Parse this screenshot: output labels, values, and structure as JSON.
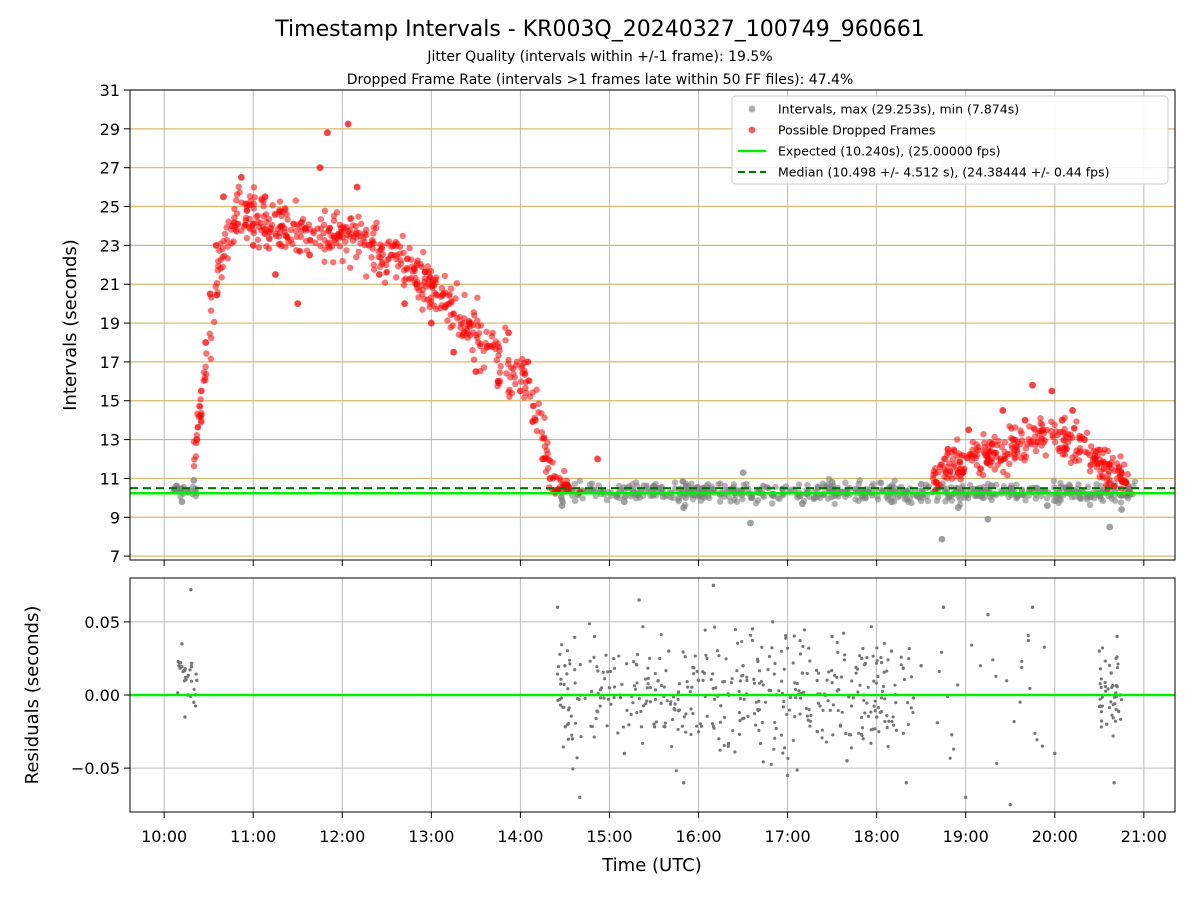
{
  "title": "Timestamp Intervals - KR003Q_20240327_100749_960661",
  "subtitle_1": "Jitter Quality (intervals within +/-1 frame): 19.5%",
  "subtitle_2": "Dropped Frame Rate (intervals >1 frames late within 50 FF files): 47.4%",
  "colors": {
    "intervals": "#808080",
    "dropped": "#ff0000",
    "expected": "#00ee00",
    "median": "#007700",
    "hgrid": "#d8b870",
    "vgrid": "#bbbbbb"
  },
  "chart_data": [
    {
      "type": "scatter",
      "name": "intervals",
      "xlabel": "",
      "ylabel": "Intervals (seconds)",
      "xlim": [
        "09:37",
        "21:21"
      ],
      "ylim": [
        6.8,
        31
      ],
      "yticks": [
        "7",
        "9",
        "11",
        "13",
        "15",
        "17",
        "19",
        "21",
        "23",
        "25",
        "27",
        "29",
        "31"
      ],
      "xticks": [
        "10:00",
        "11:00",
        "12:00",
        "13:00",
        "14:00",
        "15:00",
        "16:00",
        "17:00",
        "18:00",
        "19:00",
        "20:00",
        "21:00"
      ],
      "grid": true,
      "legend_position": "top-right",
      "legend": [
        "Intervals, max (29.253s), min (7.874s)",
        "Possible Dropped Frames",
        "Expected (10.240s), (25.00000 fps)",
        "Median (10.498 +/- 4.512 s), (24.38444 +/- 0.44 fps)"
      ],
      "expected_interval": 10.24,
      "median_interval": 10.498,
      "series": [
        {
          "name": "Intervals, max (29.253s), min (7.874s)",
          "points": [
            [
              "10:08",
              10.6
            ],
            [
              "10:12",
              9.8
            ],
            [
              "10:16",
              10.3
            ],
            [
              "10:20",
              10.9
            ],
            [
              "14:28",
              9.6
            ],
            [
              "14:50",
              10.4
            ],
            [
              "15:10",
              9.8
            ],
            [
              "15:30",
              10.6
            ],
            [
              "15:50",
              9.5
            ],
            [
              "16:10",
              10.4
            ],
            [
              "16:30",
              11.3
            ],
            [
              "16:35",
              8.7
            ],
            [
              "16:50",
              10.2
            ],
            [
              "17:10",
              9.7
            ],
            [
              "17:30",
              10.8
            ],
            [
              "17:50",
              10.1
            ],
            [
              "18:10",
              9.8
            ],
            [
              "18:30",
              10.7
            ],
            [
              "18:44",
              7.87
            ],
            [
              "18:55",
              9.5
            ],
            [
              "19:15",
              8.9
            ],
            [
              "19:35",
              10.1
            ],
            [
              "19:55",
              9.6
            ],
            [
              "20:15",
              10.3
            ],
            [
              "20:37",
              8.5
            ],
            [
              "20:45",
              9.4
            ],
            [
              "20:50",
              10.4
            ]
          ]
        },
        {
          "name": "Possible Dropped Frames",
          "points": [
            [
              "10:22",
              13.0
            ],
            [
              "10:25",
              15.5
            ],
            [
              "10:28",
              18.0
            ],
            [
              "10:31",
              20.5
            ],
            [
              "10:35",
              23.0
            ],
            [
              "10:40",
              25.5
            ],
            [
              "10:46",
              24.0
            ],
            [
              "10:52",
              26.5
            ],
            [
              "11:00",
              23.0
            ],
            [
              "11:08",
              25.5
            ],
            [
              "11:15",
              21.5
            ],
            [
              "11:22",
              23.5
            ],
            [
              "11:30",
              20.0
            ],
            [
              "11:38",
              22.5
            ],
            [
              "11:45",
              27.0
            ],
            [
              "11:50",
              28.8
            ],
            [
              "11:58",
              23.5
            ],
            [
              "12:04",
              29.25
            ],
            [
              "12:10",
              26.0
            ],
            [
              "12:18",
              23.0
            ],
            [
              "12:25",
              21.5
            ],
            [
              "12:33",
              22.5
            ],
            [
              "12:42",
              20.0
            ],
            [
              "12:50",
              21.0
            ],
            [
              "13:00",
              19.0
            ],
            [
              "13:08",
              20.5
            ],
            [
              "13:15",
              17.5
            ],
            [
              "13:22",
              18.5
            ],
            [
              "13:30",
              16.5
            ],
            [
              "13:38",
              17.8
            ],
            [
              "13:45",
              16.0
            ],
            [
              "13:52",
              18.5
            ],
            [
              "14:00",
              15.5
            ],
            [
              "14:05",
              17.0
            ],
            [
              "14:10",
              14.0
            ],
            [
              "14:15",
              12.0
            ],
            [
              "14:20",
              11.0
            ],
            [
              "14:25",
              10.4
            ],
            [
              "14:32",
              10.6
            ],
            [
              "14:40",
              10.3
            ],
            [
              "14:52",
              12.0
            ],
            [
              "18:40",
              10.8
            ],
            [
              "18:48",
              12.5
            ],
            [
              "18:55",
              11.3
            ],
            [
              "19:02",
              13.5
            ],
            [
              "19:10",
              11.5
            ],
            [
              "19:18",
              12.8
            ],
            [
              "19:25",
              14.5
            ],
            [
              "19:32",
              13.0
            ],
            [
              "19:40",
              14.0
            ],
            [
              "19:45",
              15.8
            ],
            [
              "19:52",
              13.5
            ],
            [
              "19:58",
              15.5
            ],
            [
              "20:05",
              14.0
            ],
            [
              "20:12",
              14.5
            ],
            [
              "20:20",
              13.0
            ],
            [
              "20:27",
              12.0
            ],
            [
              "20:33",
              11.5
            ],
            [
              "20:40",
              10.6
            ],
            [
              "20:48",
              10.8
            ]
          ]
        }
      ]
    },
    {
      "type": "scatter",
      "name": "residuals",
      "xlabel": "Time (UTC)",
      "ylabel": "Residuals (seconds)",
      "ylim": [
        -0.08,
        0.08
      ],
      "yticks": [
        "−0.05",
        "0.00",
        "0.05"
      ],
      "grid": true,
      "zero_line": 0.0,
      "series": [
        {
          "name": "residuals",
          "points": [
            [
              "10:10",
              0.02
            ],
            [
              "10:12",
              0.035
            ],
            [
              "10:14",
              -0.015
            ],
            [
              "10:16",
              0.0
            ],
            [
              "10:18",
              0.072
            ],
            [
              "10:20",
              -0.005
            ],
            [
              "10:22",
              0.01
            ],
            [
              "14:25",
              0.06
            ],
            [
              "14:30",
              0.02
            ],
            [
              "14:35",
              -0.03
            ],
            [
              "14:40",
              -0.07
            ],
            [
              "14:50",
              0.04
            ],
            [
              "15:00",
              0.005
            ],
            [
              "15:10",
              -0.04
            ],
            [
              "15:20",
              0.065
            ],
            [
              "15:30",
              -0.02
            ],
            [
              "15:40",
              0.03
            ],
            [
              "15:50",
              -0.06
            ],
            [
              "16:00",
              0.01
            ],
            [
              "16:10",
              0.075
            ],
            [
              "16:20",
              -0.035
            ],
            [
              "16:30",
              0.02
            ],
            [
              "16:40",
              -0.01
            ],
            [
              "16:50",
              0.05
            ],
            [
              "17:00",
              -0.055
            ],
            [
              "17:10",
              0.015
            ],
            [
              "17:20",
              -0.025
            ],
            [
              "17:30",
              0.04
            ],
            [
              "17:40",
              -0.045
            ],
            [
              "17:50",
              0.025
            ],
            [
              "18:00",
              -0.015
            ],
            [
              "18:10",
              0.03
            ],
            [
              "18:20",
              -0.06
            ],
            [
              "18:30",
              0.02
            ],
            [
              "18:45",
              0.06
            ],
            [
              "19:00",
              -0.07
            ],
            [
              "19:15",
              0.055
            ],
            [
              "19:30",
              -0.075
            ],
            [
              "19:45",
              0.06
            ],
            [
              "20:00",
              -0.04
            ],
            [
              "20:30",
              0.03
            ],
            [
              "20:35",
              -0.02
            ],
            [
              "20:38",
              0.015
            ],
            [
              "20:40",
              -0.06
            ],
            [
              "20:42",
              0.04
            ],
            [
              "20:44",
              0.0
            ]
          ]
        }
      ]
    }
  ]
}
